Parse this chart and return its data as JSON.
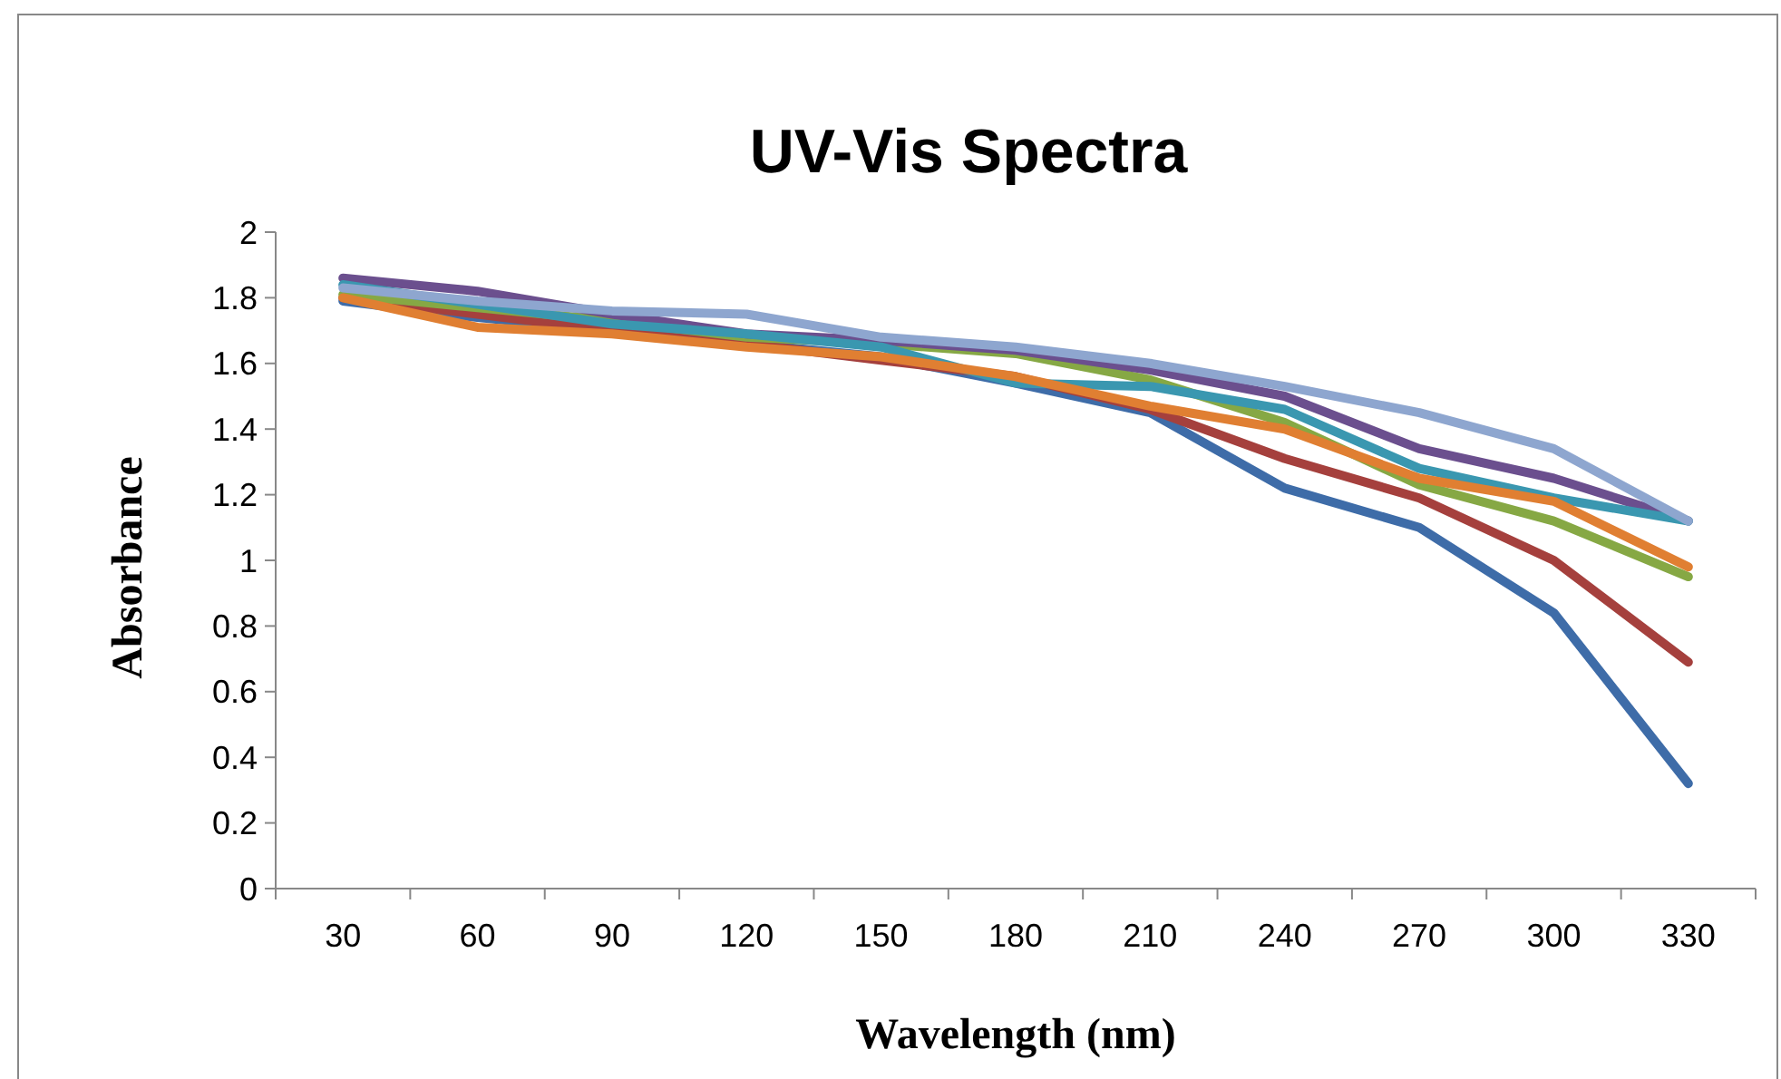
{
  "chart_data": {
    "type": "line",
    "title": "UV-Vis Spectra",
    "xlabel": "Wavelength (nm)",
    "ylabel": "Absorbance",
    "categories": [
      "30",
      "60",
      "90",
      "120",
      "150",
      "180",
      "210",
      "240",
      "270",
      "300",
      "330"
    ],
    "ylim": [
      0,
      2
    ],
    "yticks": [
      0,
      {
        "value": 0.2,
        "label": "0.2"
      },
      {
        "value": 0.4,
        "label": "0.4"
      },
      {
        "value": 0.6,
        "label": "0.6"
      },
      {
        "value": 0.8,
        "label": "0.8"
      },
      1,
      {
        "value": 1.2,
        "label": "1.2"
      },
      {
        "value": 1.4,
        "label": "1.4"
      },
      {
        "value": 1.6,
        "label": "1.6"
      },
      {
        "value": 1.8,
        "label": "1.8"
      },
      2
    ],
    "marker": "none",
    "line_style": "solid",
    "series": [
      {
        "color": "#3e6ca8",
        "values": [
          1.79,
          1.74,
          1.7,
          1.66,
          1.62,
          1.54,
          1.45,
          1.22,
          1.1,
          0.84,
          0.32
        ]
      },
      {
        "color": "#a5403d",
        "values": [
          1.8,
          1.75,
          1.7,
          1.66,
          1.61,
          1.56,
          1.46,
          1.31,
          1.19,
          1.0,
          0.69
        ]
      },
      {
        "color": "#86a844",
        "values": [
          1.81,
          1.77,
          1.73,
          1.68,
          1.66,
          1.63,
          1.55,
          1.42,
          1.23,
          1.12,
          0.95
        ]
      },
      {
        "color": "#6b4f8e",
        "values": [
          1.86,
          1.82,
          1.75,
          1.69,
          1.67,
          1.64,
          1.58,
          1.5,
          1.34,
          1.25,
          1.12
        ]
      },
      {
        "color": "#3a97b0",
        "values": [
          1.84,
          1.78,
          1.72,
          1.69,
          1.65,
          1.54,
          1.53,
          1.46,
          1.28,
          1.19,
          1.12
        ]
      },
      {
        "color": "#e07f32",
        "values": [
          1.8,
          1.71,
          1.69,
          1.65,
          1.62,
          1.56,
          1.47,
          1.4,
          1.25,
          1.18,
          0.98
        ]
      },
      {
        "color": "#8ea6cf",
        "values": [
          1.83,
          1.79,
          1.76,
          1.75,
          1.68,
          1.65,
          1.6,
          1.53,
          1.45,
          1.34,
          1.12
        ]
      }
    ]
  }
}
